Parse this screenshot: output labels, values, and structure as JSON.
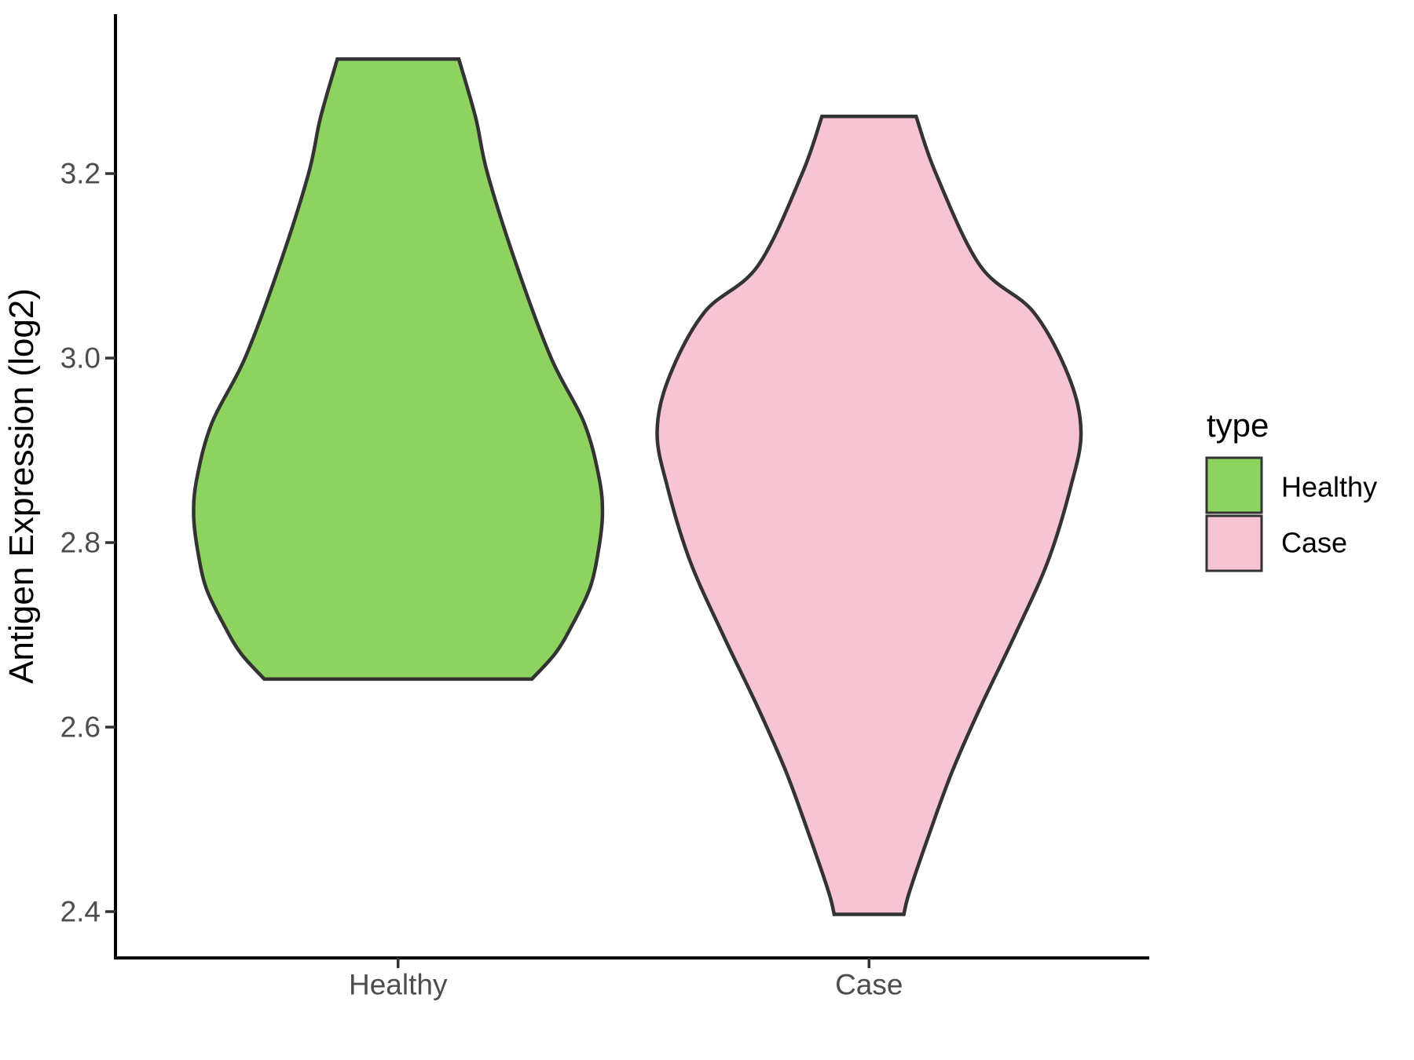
{
  "chart_data": {
    "type": "violin",
    "title": "",
    "xlabel": "",
    "ylabel": "Antigen Expression (log2)",
    "categories": [
      "Healthy",
      "Case"
    ],
    "ylim": [
      2.3498,
      3.3728
    ],
    "yticks": [
      2.4,
      2.6,
      2.8,
      3.0,
      3.2
    ],
    "ytick_labels": [
      "2.4",
      "2.6",
      "2.8",
      "3.0",
      "3.2"
    ],
    "xlim": [
      0.4,
      2.595
    ],
    "grid": "off",
    "legend": {
      "title": "type",
      "entries": [
        "Healthy",
        "Case"
      ],
      "position": "right"
    },
    "series": [
      {
        "name": "Healthy",
        "fill": "#8ED35F",
        "x_center": 1,
        "y_min": 2.65,
        "y_max": 3.32,
        "widest_at": 2.83,
        "max_half_width": 0.435,
        "density_profile": [
          [
            3.324,
            0.129
          ],
          [
            3.26,
            0.165
          ],
          [
            3.2,
            0.19
          ],
          [
            3.1,
            0.252
          ],
          [
            3.0,
            0.325
          ],
          [
            2.93,
            0.395
          ],
          [
            2.87,
            0.427
          ],
          [
            2.83,
            0.434
          ],
          [
            2.79,
            0.425
          ],
          [
            2.75,
            0.407
          ],
          [
            2.71,
            0.369
          ],
          [
            2.68,
            0.334
          ],
          [
            2.652,
            0.284
          ]
        ]
      },
      {
        "name": "Case",
        "fill": "#F6C4D2",
        "x_center": 2,
        "y_min": 2.4,
        "y_max": 3.26,
        "widest_at": 2.92,
        "max_half_width": 0.45,
        "density_profile": [
          [
            3.262,
            0.1
          ],
          [
            3.2,
            0.142
          ],
          [
            3.1,
            0.236
          ],
          [
            3.05,
            0.349
          ],
          [
            2.98,
            0.424
          ],
          [
            2.92,
            0.45
          ],
          [
            2.86,
            0.428
          ],
          [
            2.78,
            0.38
          ],
          [
            2.7,
            0.31
          ],
          [
            2.62,
            0.235
          ],
          [
            2.55,
            0.175
          ],
          [
            2.48,
            0.125
          ],
          [
            2.42,
            0.085
          ],
          [
            2.397,
            0.074
          ]
        ]
      }
    ]
  },
  "style": {
    "violin_stroke": "#333333",
    "axis_line_color": "#000000",
    "tick_mark_color": "#333333",
    "axis_text_color": "#4D4D4D",
    "axis_title_color": "#000000",
    "legend_text_color": "#000000",
    "background": "#FFFFFF"
  }
}
